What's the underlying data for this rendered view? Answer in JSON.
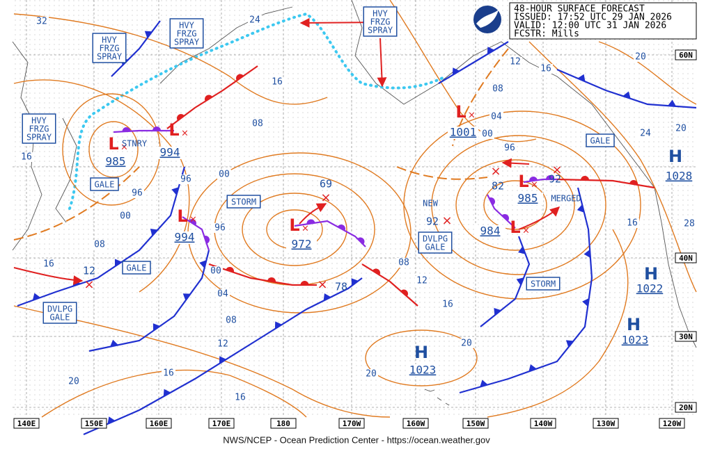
{
  "header": {
    "lines": [
      "48-HOUR SURFACE FORECAST",
      "ISSUED: 17:52 UTC 29 JAN 2026",
      "VALID:  12:00 UTC 31 JAN 2026",
      "FCSTR:  Mills"
    ]
  },
  "footer": "NWS/NCEP - Ocean Prediction Center - https://ocean.weather.gov",
  "longitudes": [
    "140E",
    "150E",
    "160E",
    "170E",
    "180",
    "170W",
    "160W",
    "150W",
    "140W",
    "130W",
    "120W"
  ],
  "latitudes": [
    "60N",
    "40N",
    "30N",
    "20N"
  ],
  "centers": [
    {
      "symbol": "L",
      "pressure": "985"
    },
    {
      "symbol": "L",
      "pressure": "994"
    },
    {
      "symbol": "L",
      "pressure": "1001"
    },
    {
      "symbol": "L",
      "pressure": "994"
    },
    {
      "symbol": "L",
      "pressure": "972"
    },
    {
      "symbol": "L",
      "pressure": "984"
    },
    {
      "symbol": "L",
      "pressure": "985"
    },
    {
      "symbol": "H",
      "pressure": "1028"
    },
    {
      "symbol": "H",
      "pressure": "1022"
    },
    {
      "symbol": "H",
      "pressure": "1023"
    },
    {
      "symbol": "H",
      "pressure": "1023"
    }
  ],
  "forecast_points": [
    "69",
    "82",
    "92",
    "92",
    "78",
    "12"
  ],
  "labels": [
    "STNRY",
    "NEW",
    "MERGED"
  ],
  "warnings": [
    {
      "lines": [
        "HVY",
        "FRZG",
        "SPRAY"
      ]
    },
    {
      "lines": [
        "HVY",
        "FRZG",
        "SPRAY"
      ]
    },
    {
      "lines": [
        "HVY",
        "FRZG",
        "SPRAY"
      ]
    },
    {
      "lines": [
        "HVY",
        "FRZG",
        "SPRAY"
      ]
    },
    {
      "lines": [
        "GALE"
      ]
    },
    {
      "lines": [
        "GALE"
      ]
    },
    {
      "lines": [
        "GALE"
      ]
    },
    {
      "lines": [
        "STORM"
      ]
    },
    {
      "lines": [
        "STORM"
      ]
    },
    {
      "lines": [
        "DVLPG",
        "GALE"
      ]
    },
    {
      "lines": [
        "DVLPG",
        "GALE"
      ]
    }
  ],
  "isobar_labels": [
    "32",
    "24",
    "16",
    "08",
    "00",
    "96",
    "96",
    "00",
    "96",
    "08",
    "16",
    "00",
    "04",
    "08",
    "12",
    "16",
    "20",
    "16",
    "16",
    "12",
    "08",
    "04",
    "00",
    "96",
    "16",
    "20",
    "24",
    "20",
    "28",
    "16",
    "08",
    "12",
    "16",
    "20",
    "20"
  ]
}
